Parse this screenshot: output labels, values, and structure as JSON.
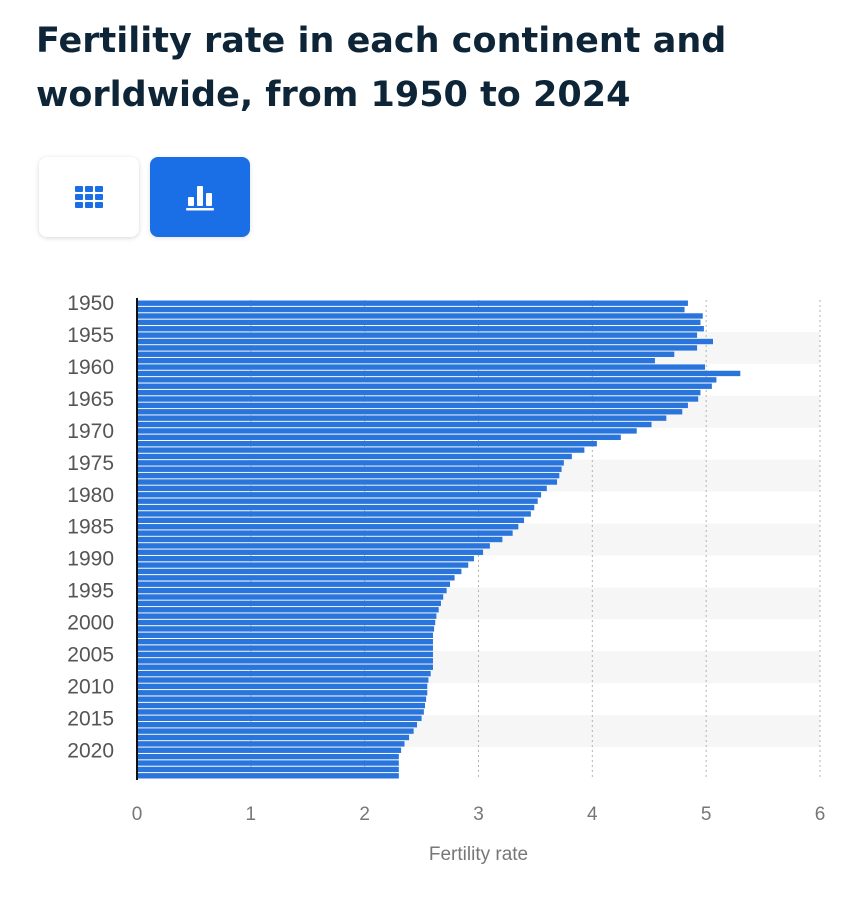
{
  "title": "Fertility rate in each continent and worldwide, from 1950 to 2024",
  "colors": {
    "title": "#0d2536",
    "accent": "#1a6ee6",
    "bar": "#2a75dc",
    "axis": "#666666"
  },
  "view_toggle": [
    {
      "icon": "table-grid-icon",
      "active": false
    },
    {
      "icon": "bar-chart-icon",
      "active": true
    }
  ],
  "chart_data": {
    "type": "bar",
    "orientation": "horizontal",
    "xlabel": "Fertility rate",
    "ylabel": "",
    "xlim": [
      0,
      6
    ],
    "x_ticks": [
      "0",
      "1",
      "2",
      "3",
      "4",
      "5",
      "6"
    ],
    "grid": true,
    "categories": [
      1950,
      1951,
      1952,
      1953,
      1954,
      1955,
      1956,
      1957,
      1958,
      1959,
      1960,
      1961,
      1962,
      1963,
      1964,
      1965,
      1966,
      1967,
      1968,
      1969,
      1970,
      1971,
      1972,
      1973,
      1974,
      1975,
      1976,
      1977,
      1978,
      1979,
      1980,
      1981,
      1982,
      1983,
      1984,
      1985,
      1986,
      1987,
      1988,
      1989,
      1990,
      1991,
      1992,
      1993,
      1994,
      1995,
      1996,
      1997,
      1998,
      1999,
      2000,
      2001,
      2002,
      2003,
      2004,
      2005,
      2006,
      2007,
      2008,
      2009,
      2010,
      2011,
      2012,
      2013,
      2014,
      2015,
      2016,
      2017,
      2018,
      2019,
      2020,
      2021,
      2022,
      2023,
      2024
    ],
    "y_tick_labels": [
      "1950",
      "1955",
      "1960",
      "1965",
      "1970",
      "1975",
      "1980",
      "1985",
      "1990",
      "1995",
      "2000",
      "2005",
      "2010",
      "2015",
      "2020"
    ],
    "values": [
      4.84,
      4.81,
      4.97,
      4.95,
      4.98,
      4.92,
      5.06,
      4.92,
      4.72,
      4.55,
      4.99,
      5.3,
      5.09,
      5.05,
      4.95,
      4.93,
      4.84,
      4.79,
      4.65,
      4.52,
      4.39,
      4.25,
      4.04,
      3.93,
      3.82,
      3.75,
      3.73,
      3.71,
      3.69,
      3.6,
      3.55,
      3.52,
      3.49,
      3.46,
      3.4,
      3.35,
      3.3,
      3.21,
      3.1,
      3.04,
      2.96,
      2.91,
      2.85,
      2.79,
      2.75,
      2.72,
      2.69,
      2.67,
      2.65,
      2.63,
      2.62,
      2.61,
      2.6,
      2.6,
      2.6,
      2.6,
      2.6,
      2.6,
      2.58,
      2.56,
      2.55,
      2.55,
      2.54,
      2.53,
      2.52,
      2.5,
      2.46,
      2.43,
      2.39,
      2.35,
      2.32,
      2.3,
      2.3,
      2.3,
      2.3
    ]
  }
}
